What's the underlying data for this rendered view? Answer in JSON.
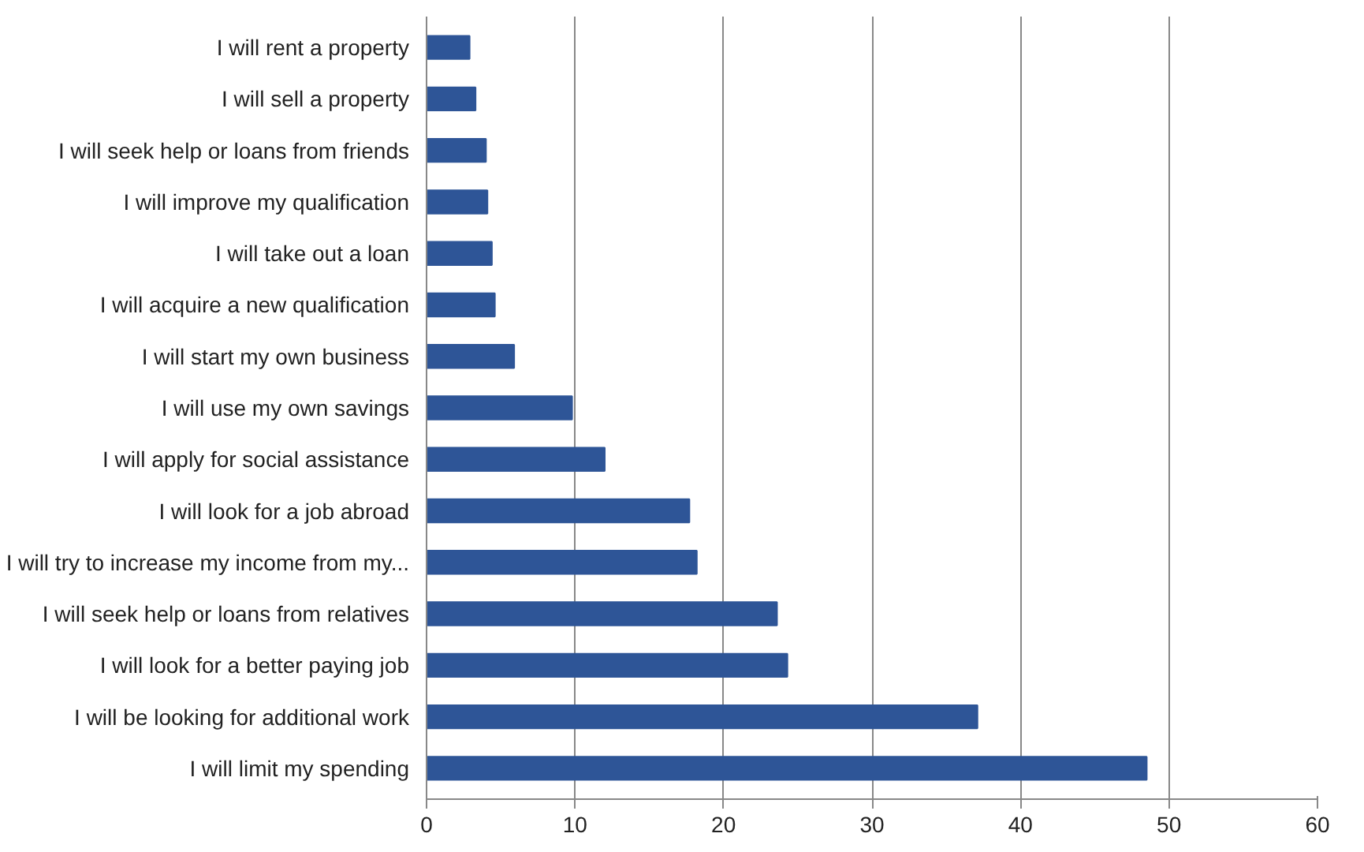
{
  "chart_data": {
    "type": "bar",
    "orientation": "horizontal",
    "categories": [
      "I will rent a property",
      "I will sell a property",
      "I will seek help or loans from friends",
      "I will improve my qualification",
      "I will take out a loan",
      "I will acquire a new qualification",
      "I will start my own business",
      "I will use my own savings",
      "I will apply for social assistance",
      "I will look for a job abroad",
      "I will try to increase my income from my...",
      "I will seek help or loans from relatives",
      "I will look for a better paying job",
      "I will be looking for additional work",
      "I will limit my spending"
    ],
    "values": [
      2.9,
      3.3,
      4.0,
      4.1,
      4.4,
      4.6,
      5.9,
      9.8,
      12.0,
      17.7,
      18.2,
      23.6,
      24.3,
      37.1,
      48.5
    ],
    "color": "#2e5597",
    "xlim": [
      0,
      60
    ],
    "xticks": [
      0,
      10,
      20,
      30,
      40,
      50,
      60
    ],
    "grid": "x"
  }
}
